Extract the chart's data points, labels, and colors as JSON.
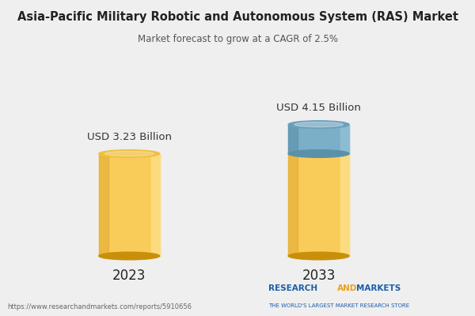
{
  "title": "Asia-Pacific Military Robotic and Autonomous System (RAS) Market",
  "subtitle": "Market forecast to grow at a CAGR of 2.5%",
  "categories": [
    "2023",
    "2033"
  ],
  "values": [
    3.23,
    4.15
  ],
  "labels": [
    "USD 3.23 Billion",
    "USD 4.15 Billion"
  ],
  "bar_color_main": "#F9CC5A",
  "bar_color_top_ellipse": "#F0C040",
  "bar_color_left_shadow": "#E0A830",
  "bar_color_right_highlight": "#FDE89A",
  "bar_color_bottom_shadow": "#C8900A",
  "bar_blue_body": "#7BAFC8",
  "bar_blue_top": "#6AA0BC",
  "bar_blue_left": "#5A90AA",
  "bar_blue_right": "#9DC8DC",
  "background_color": "#EFEFEF",
  "title_color": "#222222",
  "subtitle_color": "#555555",
  "label_color": "#333333",
  "url_text": "https://www.researchandmarkets.com/reports/5910656",
  "brand_text2": "THE WORLD'S LARGEST MARKET RESEARCH STORE",
  "brand_color_research": "#1A5DAB",
  "brand_color_and": "#E8A020",
  "brand_color_markets": "#1A5DAB",
  "brand_color_tagline": "#1A5DAB"
}
